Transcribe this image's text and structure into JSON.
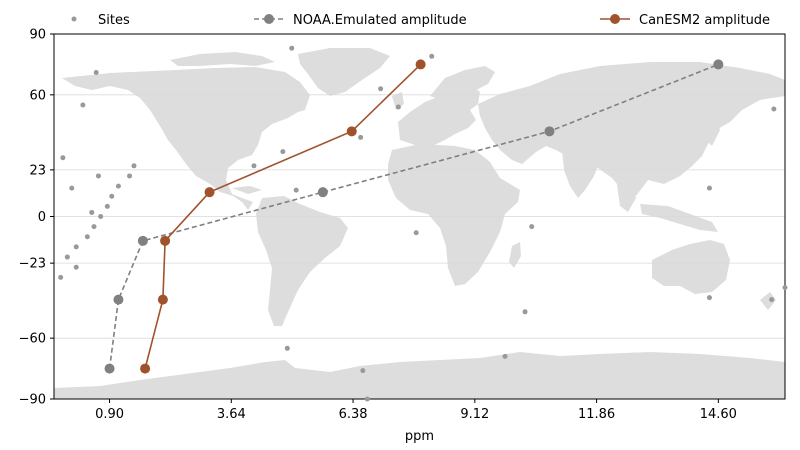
{
  "chart_data": {
    "type": "line",
    "xlabel": "ppm",
    "ylabel": "",
    "xlim": [
      -0.35,
      16.1
    ],
    "ylim": [
      -90,
      90
    ],
    "x_ticks": [
      0.9,
      3.64,
      6.38,
      9.12,
      11.86,
      14.6
    ],
    "x_tick_labels": [
      "0.90",
      "3.64",
      "6.38",
      "9.12",
      "11.86",
      "14.60"
    ],
    "y_ticks": [
      90,
      60,
      23,
      0,
      -23,
      -60,
      -90
    ],
    "y_tick_labels": [
      "90",
      "60",
      "23",
      "0",
      "−23",
      "−60",
      "−90"
    ],
    "grid": "horizontal",
    "background": "world-map",
    "legend_position": "top",
    "colors": {
      "sites": "#999999",
      "noaa": "#808080",
      "canesm": "#a0522d",
      "land": "#dddddd"
    },
    "series": [
      {
        "name": "Sites",
        "kind": "scatter",
        "points": [
          [
            -0.15,
            29
          ],
          [
            0.05,
            14
          ],
          [
            0.5,
            2
          ],
          [
            0.3,
            55
          ],
          [
            0.7,
            0
          ],
          [
            0.95,
            10
          ],
          [
            -0.2,
            -30
          ],
          [
            -0.05,
            -20
          ],
          [
            0.15,
            -15
          ],
          [
            0.15,
            -25
          ],
          [
            0.4,
            -10
          ],
          [
            0.55,
            -5
          ],
          [
            0.65,
            20
          ],
          [
            0.85,
            5
          ],
          [
            1.1,
            15
          ],
          [
            1.35,
            20
          ],
          [
            1.45,
            25
          ],
          [
            0.6,
            71
          ],
          [
            4.15,
            25
          ],
          [
            4.8,
            32
          ],
          [
            5.1,
            13
          ],
          [
            5.0,
            83
          ],
          [
            4.9,
            -65
          ],
          [
            7.0,
            63
          ],
          [
            7.4,
            54
          ],
          [
            8.15,
            79
          ],
          [
            6.55,
            39
          ],
          [
            7.8,
            -8
          ],
          [
            10.4,
            -5
          ],
          [
            10.25,
            -47
          ],
          [
            9.8,
            -69
          ],
          [
            6.6,
            -76
          ],
          [
            6.7,
            -90
          ],
          [
            14.4,
            14
          ],
          [
            14.4,
            -40
          ],
          [
            15.8,
            -41
          ],
          [
            16.1,
            -35
          ],
          [
            15.85,
            53
          ]
        ]
      },
      {
        "name": "NOAA.Emulated amplitude",
        "kind": "line",
        "style": "dashed",
        "points": [
          [
            0.9,
            -75
          ],
          [
            1.1,
            -41
          ],
          [
            1.65,
            -12
          ],
          [
            5.7,
            12
          ],
          [
            10.8,
            42
          ],
          [
            14.6,
            75
          ]
        ]
      },
      {
        "name": "CanESM2 amplitude",
        "kind": "line",
        "style": "solid",
        "points": [
          [
            1.7,
            -75
          ],
          [
            2.1,
            -41
          ],
          [
            2.15,
            -12
          ],
          [
            3.15,
            12
          ],
          [
            6.35,
            42
          ],
          [
            7.9,
            75
          ]
        ]
      }
    ]
  }
}
